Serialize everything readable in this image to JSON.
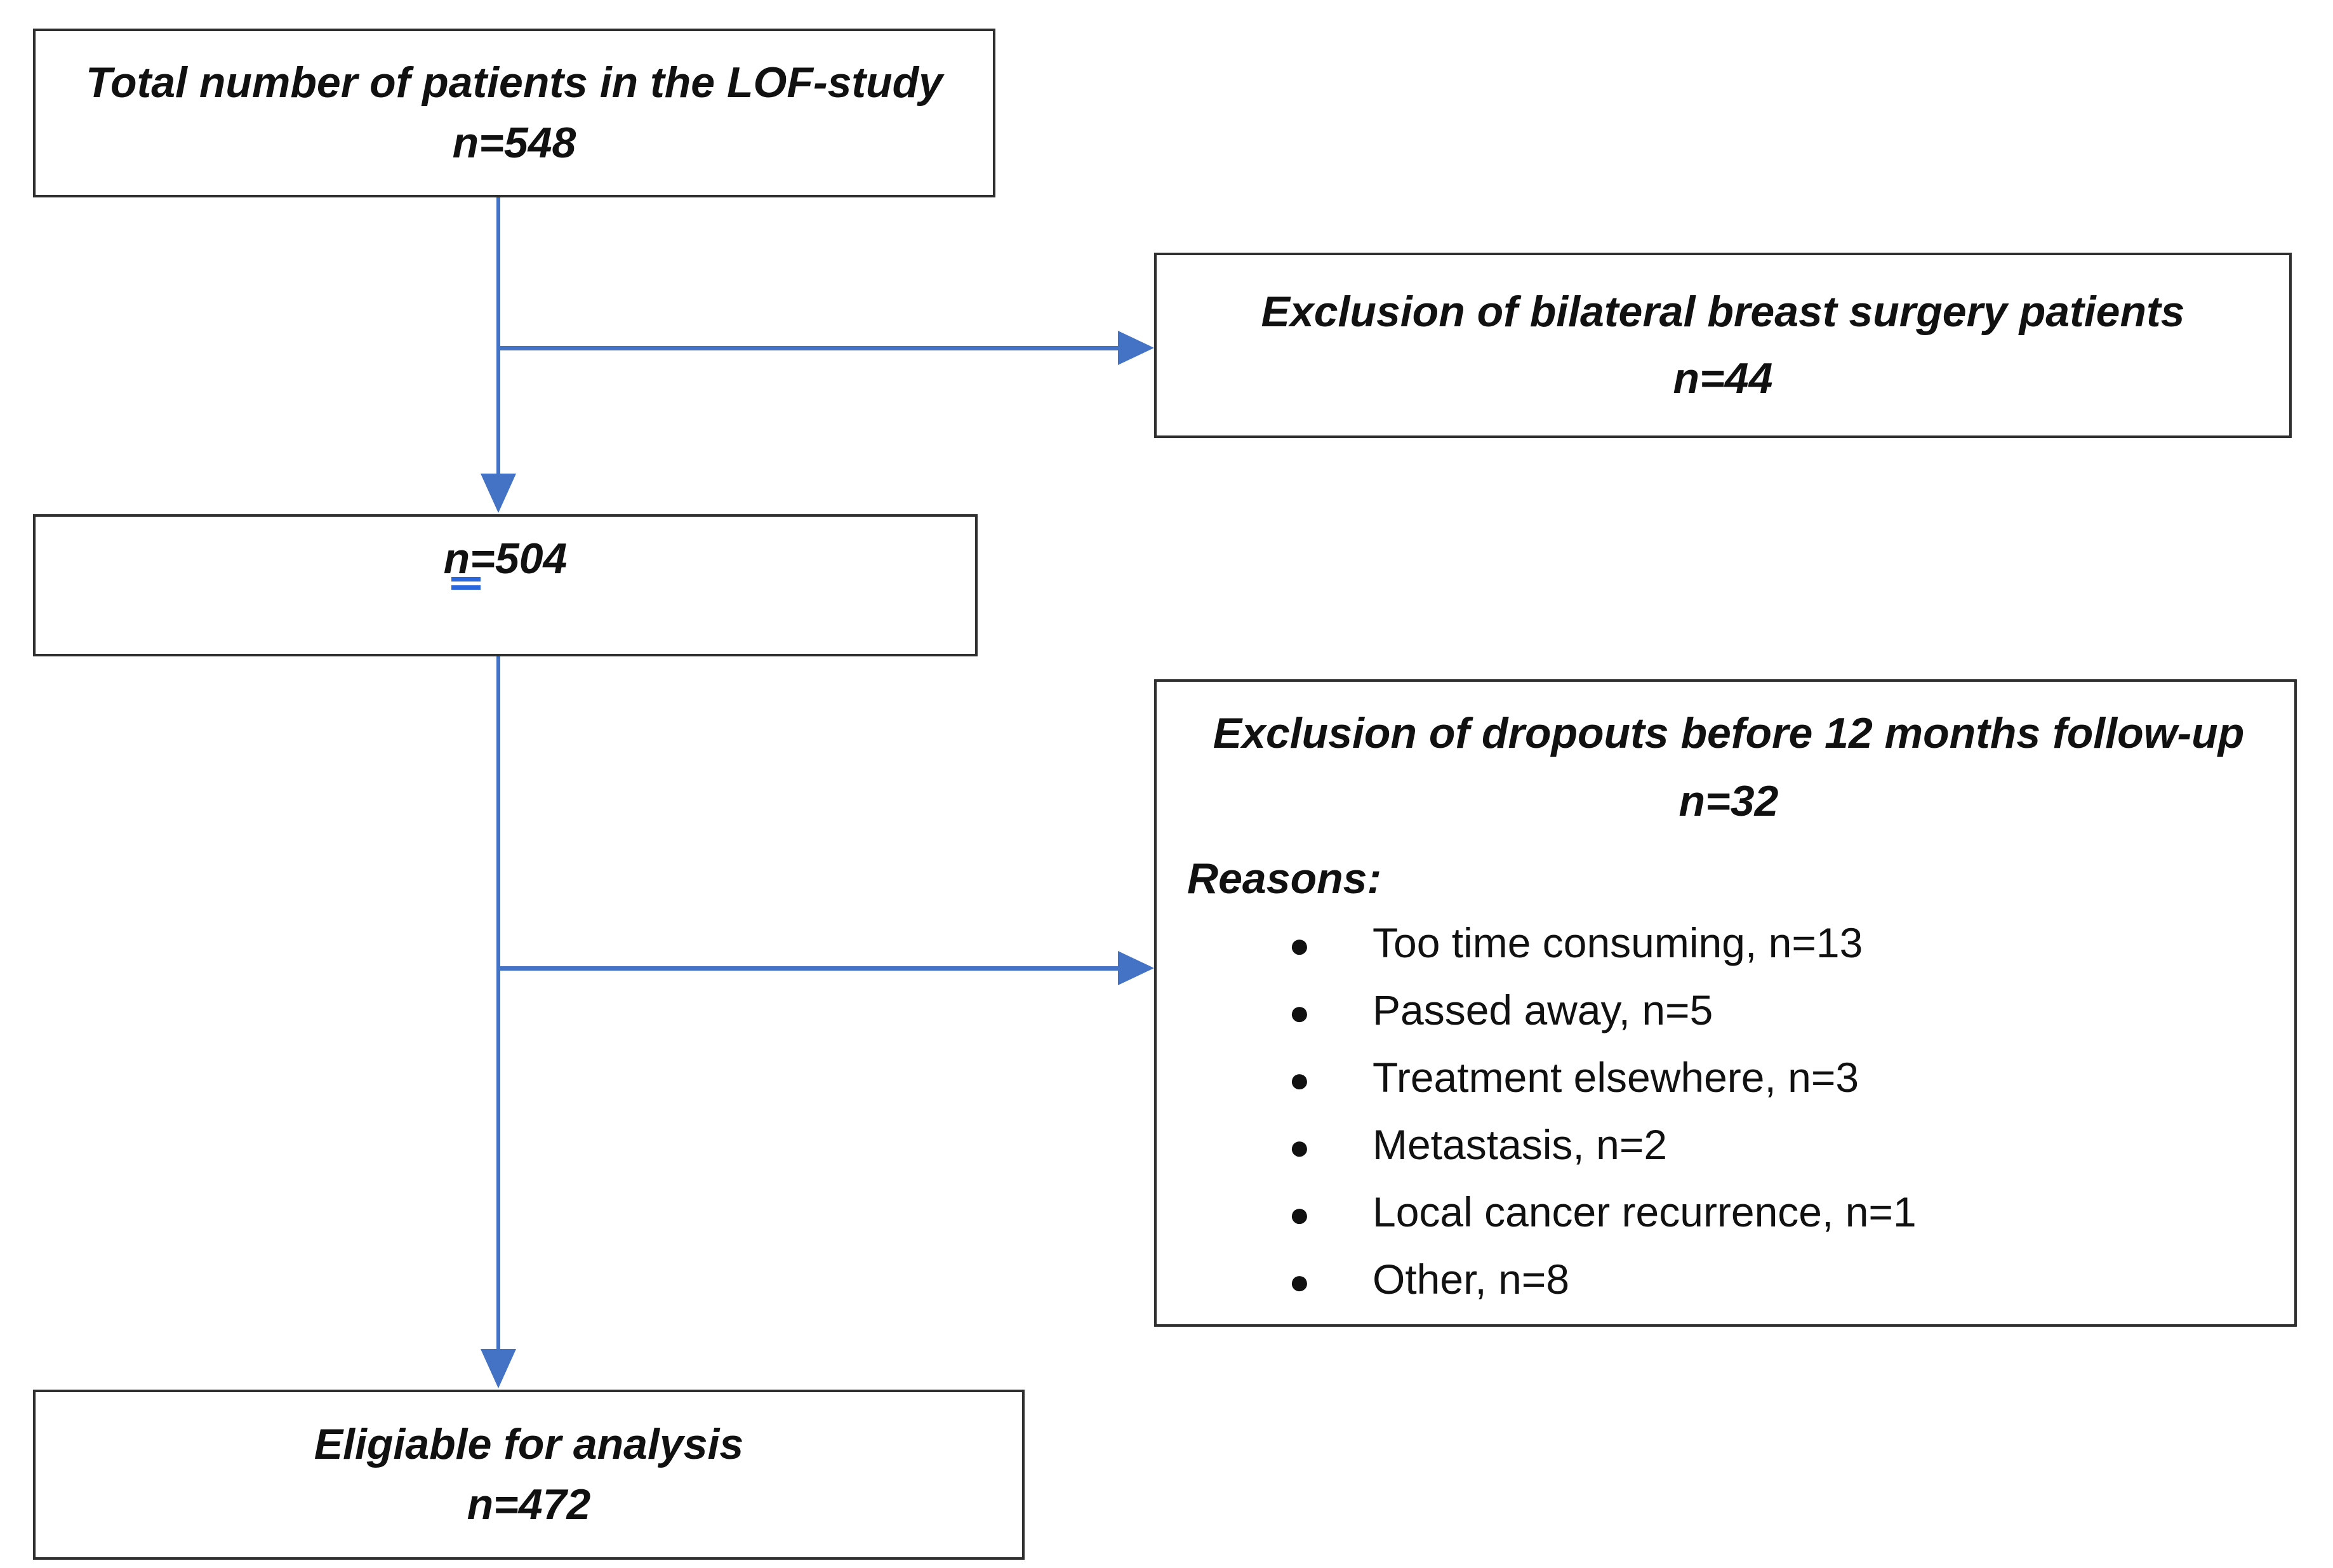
{
  "diagram": {
    "title": "LOF-study patient flow diagram",
    "boxes": {
      "total": {
        "line1": "Total number of patients in the LOF-study",
        "line2": "n=548"
      },
      "exclusion1": {
        "line1": "Exclusion of bilateral breast surgery patients",
        "line2": "n=44"
      },
      "after_exclusion1": {
        "value": "n=504"
      },
      "exclusion2": {
        "line1": "Exclusion of dropouts before 12 months follow-up",
        "line2": "n=32",
        "reasons_label": "Reasons:",
        "bullet_glyph": "●",
        "reasons": [
          "Too time consuming, n=13",
          "Passed away, n=5",
          "Treatment elsewhere, n=3",
          "Metastasis, n=2",
          "Local cancer recurrence, n=1",
          "Other, n=8"
        ]
      },
      "eligible": {
        "line1": "Eligiable for analysis",
        "line2": "n=472"
      }
    },
    "colors": {
      "arrow": "#4472C4",
      "border": "#2F2F2F",
      "grammar_underline": "#2B66DD",
      "text": "#111111",
      "background": "#FFFFFF"
    }
  }
}
